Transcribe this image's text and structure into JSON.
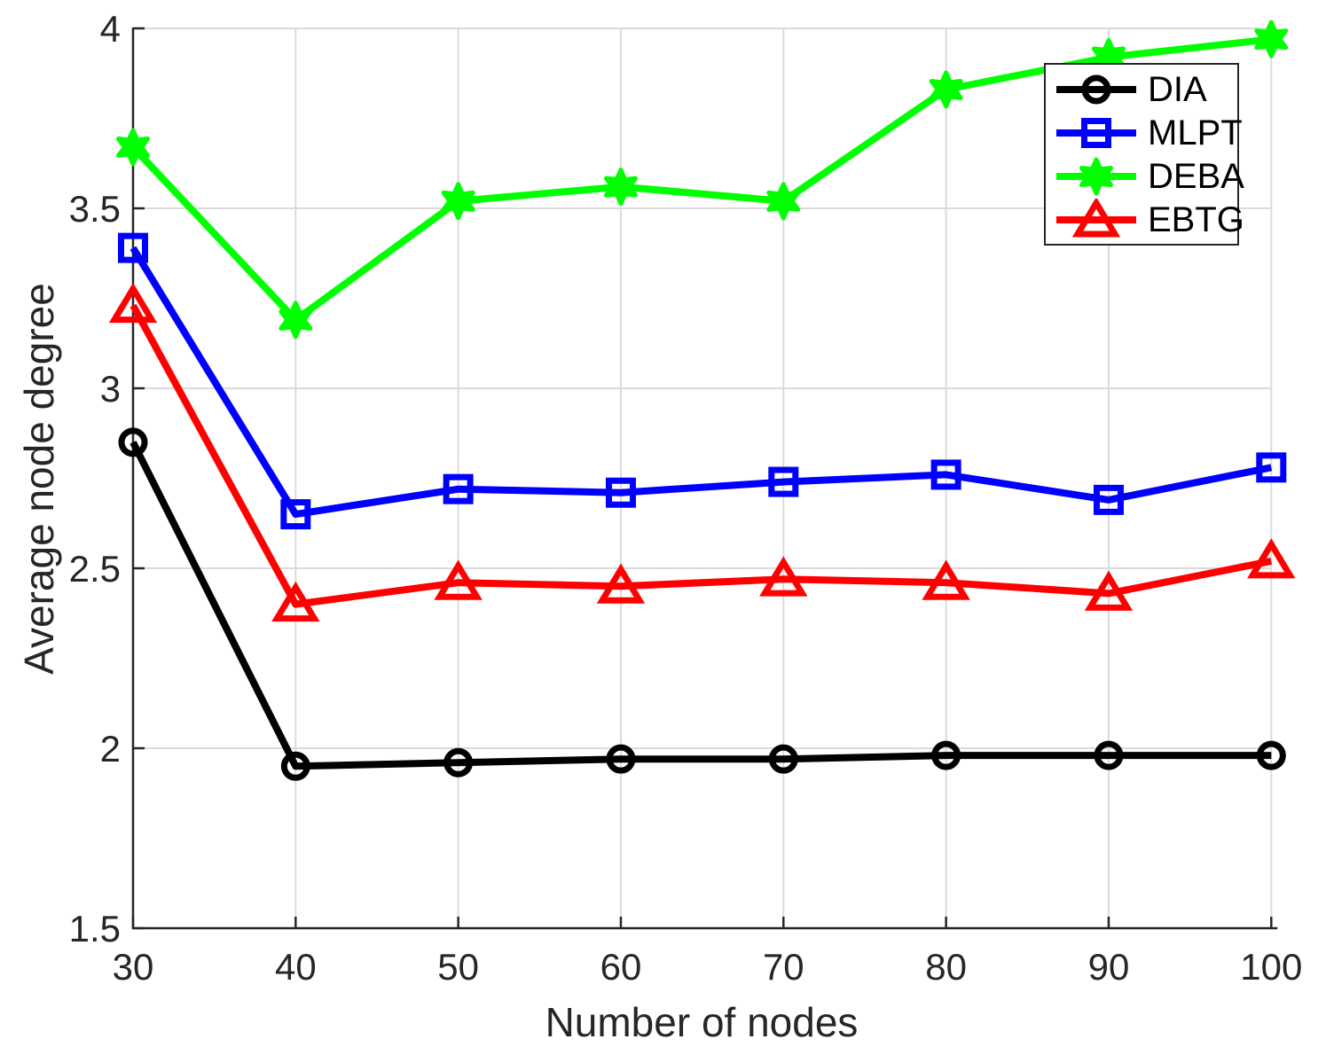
{
  "chart_data": {
    "type": "line",
    "title": "",
    "xlabel": "Number of nodes",
    "ylabel": "Average node degree",
    "x": [
      30,
      40,
      50,
      60,
      70,
      80,
      90,
      100
    ],
    "xtick_labels": [
      "30",
      "40",
      "50",
      "60",
      "70",
      "80",
      "90",
      "100"
    ],
    "yticks": [
      1.5,
      2,
      2.5,
      3,
      3.5,
      4
    ],
    "ytick_labels": [
      "1.5",
      "2",
      "2.5",
      "3",
      "3.5",
      "4"
    ],
    "xlim": [
      30,
      100
    ],
    "ylim": [
      1.5,
      4
    ],
    "grid": true,
    "legend_position": "top-right",
    "series": [
      {
        "name": "DIA",
        "color": "#000000",
        "marker": "circle",
        "values": [
          2.85,
          1.95,
          1.96,
          1.97,
          1.97,
          1.98,
          1.98,
          1.98
        ]
      },
      {
        "name": "MLPT",
        "color": "#0000ff",
        "marker": "square",
        "values": [
          3.39,
          2.65,
          2.72,
          2.71,
          2.74,
          2.76,
          2.69,
          2.78
        ]
      },
      {
        "name": "DEBA",
        "color": "#00ff00",
        "marker": "hexagram",
        "values": [
          3.67,
          3.19,
          3.52,
          3.56,
          3.52,
          3.83,
          3.92,
          3.97
        ]
      },
      {
        "name": "EBTG",
        "color": "#ff0000",
        "marker": "triangle",
        "values": [
          3.23,
          2.4,
          2.46,
          2.45,
          2.47,
          2.46,
          2.43,
          2.52
        ]
      }
    ],
    "styles": {
      "grid_color": "#dbdbdb",
      "axis_color": "#262626",
      "line_width": 8
    }
  }
}
